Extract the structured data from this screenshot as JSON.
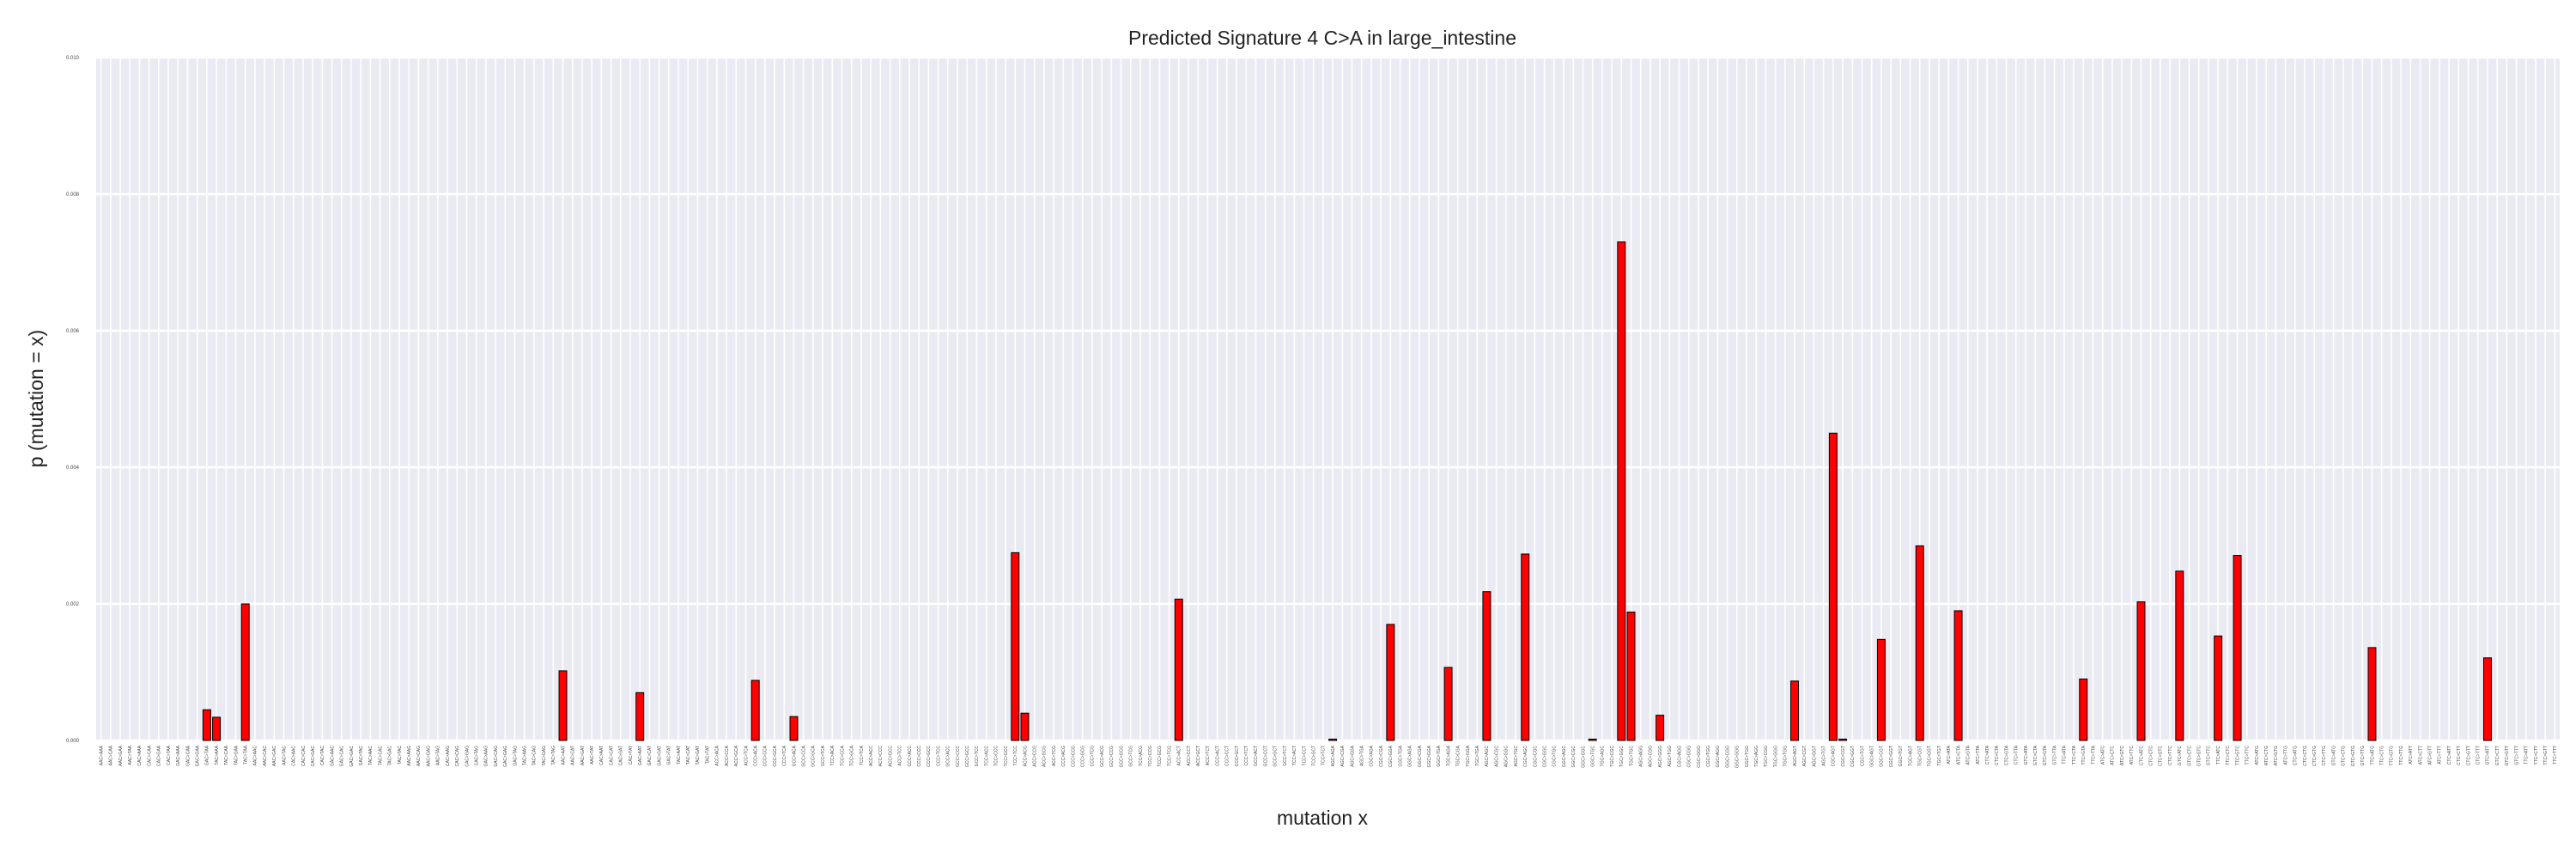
{
  "chart_data": {
    "type": "bar",
    "title": "Predicted Signature 4 C>A in large_intestine",
    "xlabel": "mutation x",
    "ylabel": "p (mutation = x)",
    "ylim": [
      0,
      0.01
    ],
    "yticks": [
      "0.000",
      "0.002",
      "0.004",
      "0.006",
      "0.008",
      "0.010"
    ],
    "grid": true,
    "colors": {
      "bar": "#ff0000",
      "bar_edge": "#000000",
      "plot_bg": "#eaeaf2",
      "grid": "#ffffff"
    },
    "categories": [
      "AAC>AAA",
      "AAC>CAA",
      "AAC>GAA",
      "AAC>TAA",
      "CAC>AAA",
      "CAC>CAA",
      "CAC>GAA",
      "CAC>TAA",
      "GAC>AAA",
      "GAC>CAA",
      "GAC>GAA",
      "GAC>TAA",
      "TAC>AAA",
      "TAC>CAA",
      "TAC>GAA",
      "TAC>TAA",
      "AAC>AAC",
      "AAC>CAC",
      "AAC>GAC",
      "AAC>TAC",
      "CAC>AAC",
      "CAC>CAC",
      "CAC>GAC",
      "CAC>TAC",
      "GAC>AAC",
      "GAC>CAC",
      "GAC>GAC",
      "GAC>TAC",
      "TAC>AAC",
      "TAC>CAC",
      "TAC>GAC",
      "TAC>TAC",
      "AAC>AAG",
      "AAC>CAG",
      "AAC>GAG",
      "AAC>TAG",
      "CAC>AAG",
      "CAC>CAG",
      "CAC>GAG",
      "CAC>TAG",
      "GAC>AAG",
      "GAC>CAG",
      "GAC>GAG",
      "GAC>TAG",
      "TAC>AAG",
      "TAC>CAG",
      "TAC>GAG",
      "TAC>TAG",
      "AAC>AAT",
      "AAC>CAT",
      "AAC>GAT",
      "AAC>TAT",
      "CAC>AAT",
      "CAC>CAT",
      "CAC>GAT",
      "CAC>TAT",
      "GAC>AAT",
      "GAC>CAT",
      "GAC>GAT",
      "GAC>TAT",
      "TAC>AAT",
      "TAC>CAT",
      "TAC>GAT",
      "TAC>TAT",
      "ACC>ACA",
      "ACC>CCA",
      "ACC>GCA",
      "ACC>TCA",
      "CCC>ACA",
      "CCC>CCA",
      "CCC>GCA",
      "CCC>TCA",
      "GCC>ACA",
      "GCC>CCA",
      "GCC>GCA",
      "GCC>TCA",
      "TCC>ACA",
      "TCC>CCA",
      "TCC>GCA",
      "TCC>TCA",
      "ACC>ACC",
      "ACC>CCC",
      "ACC>GCC",
      "ACC>TCC",
      "CCC>ACC",
      "CCC>CCC",
      "CCC>GCC",
      "CCC>TCC",
      "GCC>ACC",
      "GCC>CCC",
      "GCC>GCC",
      "GCC>TCC",
      "TCC>ACC",
      "TCC>CCC",
      "TCC>GCC",
      "TCC>TCC",
      "ACC>ACG",
      "ACC>CCG",
      "ACC>GCG",
      "ACC>TCG",
      "CCC>ACG",
      "CCC>CCG",
      "CCC>GCG",
      "CCC>TCG",
      "GCC>ACG",
      "GCC>CCG",
      "GCC>GCG",
      "GCC>TCG",
      "TCC>ACG",
      "TCC>CCG",
      "TCC>GCG",
      "TCC>TCG",
      "ACC>ACT",
      "ACC>CCT",
      "ACC>GCT",
      "ACC>TCT",
      "CCC>ACT",
      "CCC>CCT",
      "CCC>GCT",
      "CCC>TCT",
      "GCC>ACT",
      "GCC>CCT",
      "GCC>GCT",
      "GCC>TCT",
      "TCC>ACT",
      "TCC>CCT",
      "TCC>GCT",
      "TCC>TCT",
      "AGC>AGA",
      "AGC>CGA",
      "AGC>GGA",
      "AGC>TGA",
      "CGC>AGA",
      "CGC>CGA",
      "CGC>GGA",
      "CGC>TGA",
      "GGC>AGA",
      "GGC>CGA",
      "GGC>GGA",
      "GGC>TGA",
      "TGC>AGA",
      "TGC>CGA",
      "TGC>GGA",
      "TGC>TGA",
      "AGC>AGC",
      "AGC>CGC",
      "AGC>GGC",
      "AGC>TGC",
      "CGC>AGC",
      "CGC>CGC",
      "CGC>GGC",
      "CGC>TGC",
      "GGC>AGC",
      "GGC>CGC",
      "GGC>GGC",
      "GGC>TGC",
      "TGC>AGC",
      "TGC>CGC",
      "TGC>GGC",
      "TGC>TGC",
      "AGC>AGG",
      "AGC>CGG",
      "AGC>GGG",
      "AGC>TGG",
      "CGC>AGG",
      "CGC>CGG",
      "CGC>GGG",
      "CGC>TGG",
      "GGC>AGG",
      "GGC>CGG",
      "GGC>GGG",
      "GGC>TGG",
      "TGC>AGG",
      "TGC>CGG",
      "TGC>GGG",
      "TGC>TGG",
      "AGC>AGT",
      "AGC>CGT",
      "AGC>GGT",
      "AGC>TGT",
      "CGC>AGT",
      "CGC>CGT",
      "CGC>GGT",
      "CGC>TGT",
      "GGC>AGT",
      "GGC>CGT",
      "GGC>GGT",
      "GGC>TGT",
      "TGC>AGT",
      "TGC>CGT",
      "TGC>GGT",
      "TGC>TGT",
      "ATC>ATA",
      "ATC>CTA",
      "ATC>GTA",
      "ATC>TTA",
      "CTC>ATA",
      "CTC>CTA",
      "CTC>GTA",
      "CTC>TTA",
      "GTC>ATA",
      "GTC>CTA",
      "GTC>GTA",
      "GTC>TTA",
      "TTC>ATA",
      "TTC>CTA",
      "TTC>GTA",
      "TTC>TTA",
      "ATC>ATC",
      "ATC>CTC",
      "ATC>GTC",
      "ATC>TTC",
      "CTC>ATC",
      "CTC>CTC",
      "CTC>GTC",
      "CTC>TTC",
      "GTC>ATC",
      "GTC>CTC",
      "GTC>GTC",
      "GTC>TTC",
      "TTC>ATC",
      "TTC>CTC",
      "TTC>GTC",
      "TTC>TTC",
      "ATC>ATG",
      "ATC>CTG",
      "ATC>GTG",
      "ATC>TTG",
      "CTC>ATG",
      "CTC>CTG",
      "CTC>GTG",
      "CTC>TTG",
      "GTC>ATG",
      "GTC>CTG",
      "GTC>GTG",
      "GTC>TTG",
      "TTC>ATG",
      "TTC>CTG",
      "TTC>GTG",
      "TTC>TTG",
      "ATC>ATT",
      "ATC>CTT",
      "ATC>GTT",
      "ATC>TTT",
      "CTC>ATT",
      "CTC>CTT",
      "CTC>GTT",
      "CTC>TTT",
      "GTC>ATT",
      "GTC>CTT",
      "GTC>GTT",
      "GTC>TTT",
      "TTC>ATT",
      "TTC>CTT",
      "TTC>GTT",
      "TTC>TTT"
    ],
    "values": [
      0,
      0,
      0,
      0,
      0,
      0,
      0,
      0,
      0,
      0,
      0,
      0.00045,
      0.00034,
      0,
      0,
      0.002,
      0,
      0,
      0,
      0,
      0,
      0,
      0,
      0,
      0,
      0,
      0,
      0,
      0,
      0,
      0,
      0,
      0,
      0,
      0,
      0,
      0,
      0,
      0,
      0,
      0,
      0,
      0,
      0,
      0,
      0,
      0,
      0,
      0.00102,
      0,
      0,
      0,
      0,
      0,
      0,
      0,
      0.0007,
      0,
      0,
      0,
      0,
      0,
      0,
      0,
      0,
      0,
      0,
      0,
      0.00088,
      0,
      0,
      0,
      0.00035,
      0,
      0,
      0,
      0,
      0,
      0,
      0,
      0,
      0,
      0,
      0,
      0,
      0,
      0,
      0,
      0,
      0,
      0,
      0,
      0,
      0,
      0,
      0.00275,
      0.0004,
      0,
      0,
      0,
      0,
      0,
      0,
      0,
      0,
      0,
      0,
      0,
      0,
      0,
      0,
      0,
      0.00207,
      0,
      0,
      0,
      0,
      0,
      0,
      0,
      0,
      0,
      0,
      0,
      0,
      0,
      0,
      0,
      2e-05,
      0,
      0,
      0,
      0,
      0,
      0.0017,
      0,
      0,
      0,
      0,
      0,
      0.00107,
      0,
      0,
      0,
      0.00218,
      0,
      0,
      0,
      0.00273,
      0,
      0,
      0,
      0,
      0,
      0,
      2e-05,
      0,
      0,
      0.0073,
      0.00188,
      0,
      0,
      0.00037,
      0,
      0,
      0,
      0,
      0,
      0,
      0,
      0,
      0,
      0,
      0,
      0,
      0,
      0.00087,
      0,
      0,
      0,
      0.0045,
      2e-05,
      0,
      0,
      0,
      0.00148,
      0,
      0,
      0,
      0.00285,
      0,
      0,
      0,
      0.0019,
      0,
      0,
      0,
      0,
      0,
      0,
      0,
      0,
      0,
      0,
      0,
      0,
      0.0009,
      0,
      0,
      0,
      0,
      0,
      0.00203,
      0,
      0,
      0,
      0.00248,
      0,
      0,
      0,
      0.00153,
      0,
      0.00271,
      0,
      0,
      0,
      0,
      0,
      0,
      0,
      0,
      0,
      0,
      0,
      0,
      0,
      0.00136,
      0,
      0,
      0,
      0,
      0,
      0,
      0,
      0,
      0,
      0,
      0,
      0.00121,
      0,
      0,
      0,
      0,
      0,
      0,
      0
    ]
  }
}
